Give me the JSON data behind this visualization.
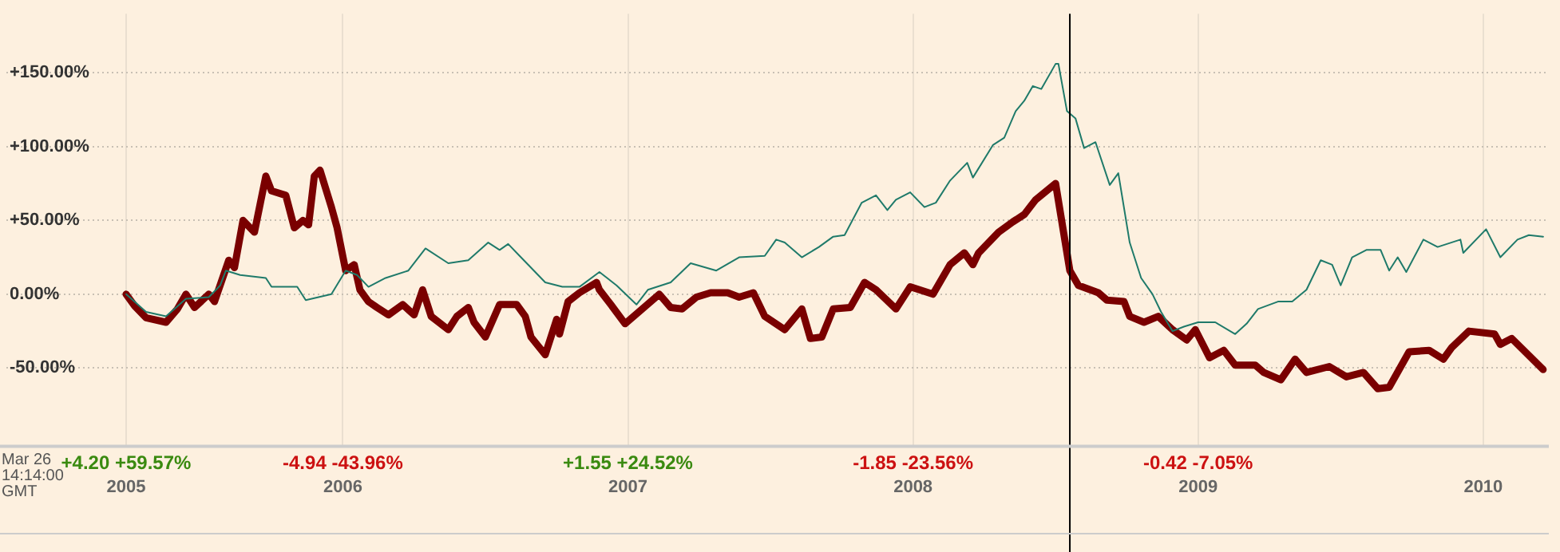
{
  "chart_data": {
    "type": "line",
    "xlim": [
      2004.82,
      2010.23
    ],
    "ylim": [
      -102,
      190
    ],
    "xticks": [
      {
        "value": 2005.24,
        "label": "2005"
      },
      {
        "value": 2006,
        "label": "2006"
      },
      {
        "value": 2007,
        "label": "2007"
      },
      {
        "value": 2008,
        "label": "2008"
      },
      {
        "value": 2009,
        "label": "2009"
      },
      {
        "value": 2010,
        "label": "2010"
      }
    ],
    "yticks": [
      {
        "value": -50,
        "label": "-50.00%"
      },
      {
        "value": 0,
        "label": "0.00%"
      },
      {
        "value": 50,
        "label": "+50.00%"
      },
      {
        "value": 100,
        "label": "+100.00%"
      },
      {
        "value": 150,
        "label": "+150.00%"
      }
    ],
    "grid": true,
    "ref_lines": [
      {
        "axis": "x",
        "value": 2008.55,
        "color": "#000000"
      }
    ],
    "annotations": [
      "Mar 26 14:14:00 GMT",
      "+4.20 +59.57%",
      "-4.94 -43.96%",
      "+1.55 +24.52%",
      "-1.85 -23.56%",
      "-0.42 -7.05%"
    ],
    "series": [
      {
        "color": "#1f7a6a",
        "x": [
          2005.24,
          2005.31,
          2005.38,
          2005.45,
          2005.53,
          2005.57,
          2005.59,
          2005.64,
          2005.73,
          2005.75,
          2005.84,
          2005.87,
          2005.96,
          2006.01,
          2006.05,
          2006.09,
          2006.15,
          2006.23,
          2006.29,
          2006.37,
          2006.44,
          2006.51,
          2006.55,
          2006.58,
          2006.62,
          2006.71,
          2006.77,
          2006.83,
          2006.9,
          2006.96,
          2007.03,
          2007.07,
          2007.15,
          2007.22,
          2007.31,
          2007.39,
          2007.48,
          2007.52,
          2007.55,
          2007.61,
          2007.67,
          2007.72,
          2007.76,
          2007.82,
          2007.87,
          2007.91,
          2007.94,
          2007.99,
          2008.04,
          2008.08,
          2008.13,
          2008.19,
          2008.21,
          2008.28,
          2008.32,
          2008.36,
          2008.39,
          2008.42,
          2008.45,
          2008.5,
          2008.51,
          2008.54,
          2008.57,
          2008.6,
          2008.64,
          2008.69,
          2008.72,
          2008.76,
          2008.8,
          2008.84,
          2008.87,
          2008.91,
          2008.95,
          2009.0,
          2009.06,
          2009.13,
          2009.17,
          2009.21,
          2009.28,
          2009.33,
          2009.38,
          2009.43,
          2009.47,
          2009.5,
          2009.54,
          2009.59,
          2009.64,
          2009.67,
          2009.7,
          2009.73,
          2009.79,
          2009.84,
          2009.92,
          2009.93,
          2010.01,
          2010.06,
          2010.12,
          2010.16,
          2010.21
        ],
        "values": [
          0,
          -12,
          -15,
          -3,
          -2,
          6,
          16,
          13,
          11,
          5,
          5,
          -4,
          0,
          16,
          13,
          5,
          11,
          16,
          31,
          21,
          23,
          35,
          30,
          34,
          26,
          8,
          5,
          5,
          15,
          6,
          -7,
          3,
          8,
          21,
          16,
          25,
          26,
          37,
          35,
          25,
          32,
          39,
          40,
          62,
          67,
          57,
          64,
          69,
          59,
          62,
          77,
          89,
          79,
          101,
          106,
          124,
          131,
          141,
          139,
          156,
          156,
          124,
          119,
          99,
          103,
          74,
          82,
          35,
          11,
          0,
          -12,
          -25,
          -22,
          -19,
          -19,
          -27,
          -20,
          -10,
          -5,
          -5,
          3,
          23,
          20,
          6,
          25,
          30,
          30,
          16,
          25,
          15,
          37,
          32,
          37,
          28,
          44,
          25,
          37,
          40,
          39
        ]
      },
      {
        "color": "#7a0000",
        "x": [
          2005.24,
          2005.27,
          2005.31,
          2005.38,
          2005.42,
          2005.45,
          2005.48,
          2005.53,
          2005.55,
          2005.6,
          2005.62,
          2005.65,
          2005.69,
          2005.73,
          2005.75,
          2005.8,
          2005.83,
          2005.86,
          2005.88,
          2005.9,
          2005.92,
          2005.96,
          2005.98,
          2006.01,
          2006.04,
          2006.06,
          2006.09,
          2006.12,
          2006.16,
          2006.21,
          2006.25,
          2006.28,
          2006.31,
          2006.37,
          2006.4,
          2006.44,
          2006.46,
          2006.5,
          2006.55,
          2006.61,
          2006.64,
          2006.66,
          2006.71,
          2006.75,
          2006.76,
          2006.79,
          2006.83,
          2006.89,
          2006.9,
          2006.94,
          2006.99,
          2007.05,
          2007.11,
          2007.15,
          2007.19,
          2007.24,
          2007.29,
          2007.35,
          2007.39,
          2007.44,
          2007.48,
          2007.55,
          2007.61,
          2007.64,
          2007.68,
          2007.72,
          2007.78,
          2007.83,
          2007.87,
          2007.94,
          2007.99,
          2008.07,
          2008.13,
          2008.18,
          2008.21,
          2008.23,
          2008.3,
          2008.35,
          2008.39,
          2008.43,
          2008.5,
          2008.55,
          2008.58,
          2008.65,
          2008.68,
          2008.74,
          2008.76,
          2008.81,
          2008.86,
          2008.91,
          2008.96,
          2008.99,
          2009.04,
          2009.09,
          2009.13,
          2009.2,
          2009.23,
          2009.29,
          2009.34,
          2009.38,
          2009.46,
          2009.52,
          2009.58,
          2009.63,
          2009.67,
          2009.74,
          2009.81,
          2009.86,
          2009.89,
          2009.95,
          2010.04,
          2010.06,
          2010.1,
          2010.21
        ],
        "values": [
          0,
          -8,
          -16,
          -19,
          -10,
          0,
          -9,
          0,
          -5,
          23,
          18,
          50,
          42,
          80,
          70,
          67,
          45,
          50,
          47,
          80,
          84,
          59,
          45,
          16,
          20,
          3,
          -5,
          -9,
          -14,
          -7,
          -14,
          3,
          -15,
          -24,
          -15,
          -9,
          -19,
          -29,
          -7,
          -7,
          -15,
          -29,
          -41,
          -17,
          -27,
          -5,
          1,
          8,
          3,
          -7,
          -20,
          -10,
          0,
          -9,
          -10,
          -2,
          1,
          1,
          -2,
          1,
          -15,
          -24,
          -10,
          -30,
          -29,
          -10,
          -9,
          8,
          3,
          -10,
          5,
          0,
          20,
          28,
          20,
          28,
          42,
          49,
          54,
          64,
          75,
          16,
          6,
          1,
          -4,
          -5,
          -15,
          -19,
          -15,
          -24,
          -31,
          -24,
          -43,
          -38,
          -48,
          -48,
          -53,
          -58,
          -44,
          -53,
          -49,
          -56,
          -53,
          -64,
          -63,
          -39,
          -38,
          -44,
          -36,
          -25,
          -27,
          -34,
          -30,
          -51
        ]
      }
    ]
  }
}
